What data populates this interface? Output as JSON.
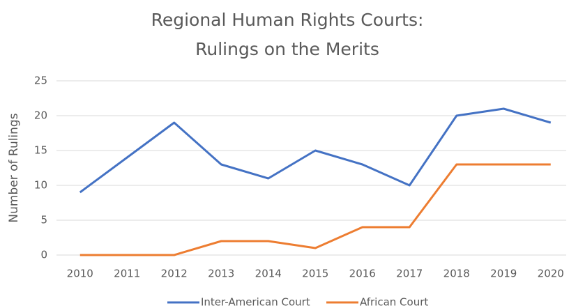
{
  "chart_data": {
    "type": "line",
    "title": [
      "Regional Human Rights Courts:",
      "Rulings on the Merits"
    ],
    "y_label": "Number of Rulings",
    "categories": [
      "2010",
      "2011",
      "2012",
      "2013",
      "2014",
      "2015",
      "2016",
      "2017",
      "2018",
      "2019",
      "2020"
    ],
    "series": [
      {
        "name": "Inter-American Court",
        "color": "#4472c4",
        "values": [
          9,
          14,
          19,
          13,
          11,
          15,
          13,
          10,
          20,
          21,
          19
        ]
      },
      {
        "name": "African Court",
        "color": "#ed7d31",
        "values": [
          0,
          0,
          0,
          2,
          2,
          1,
          4,
          4,
          13,
          13,
          13
        ]
      }
    ],
    "ylim": [
      0,
      25
    ],
    "yticks": [
      0,
      5,
      10,
      15,
      20,
      25
    ],
    "grid": true,
    "legend": "bottom"
  }
}
